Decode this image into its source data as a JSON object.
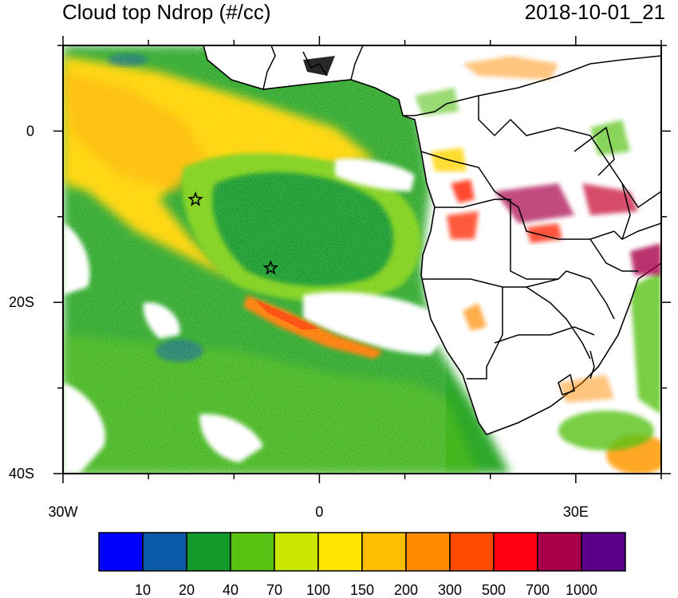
{
  "title_left": "Cloud top Ndrop (#/cc)",
  "title_right": "2018-10-01_21",
  "axes": {
    "x_ticks": [
      {
        "value": -30,
        "label": "30W"
      },
      {
        "value": 0,
        "label": "0"
      },
      {
        "value": 30,
        "label": "30E"
      }
    ],
    "y_ticks": [
      {
        "value": 0,
        "label": "0"
      },
      {
        "value": -20,
        "label": "20S"
      },
      {
        "value": -40,
        "label": "40S"
      }
    ],
    "x_range": [
      -30,
      40
    ],
    "y_range": [
      -40,
      10
    ]
  },
  "colorbar": {
    "colors": [
      "#0000ff",
      "#0a5aa8",
      "#139a2a",
      "#58c212",
      "#c8e600",
      "#ffe600",
      "#ffbe00",
      "#ff8a00",
      "#ff4a00",
      "#ff0010",
      "#a8004a",
      "#5a0088"
    ],
    "labels": [
      "10",
      "20",
      "40",
      "70",
      "100",
      "150",
      "200",
      "300",
      "500",
      "700",
      "1000"
    ]
  },
  "markers": [
    {
      "name": "star-1",
      "lon": -14.5,
      "lat": -8.0
    },
    {
      "name": "star-2",
      "lon": -5.7,
      "lat": -16.0
    }
  ]
}
